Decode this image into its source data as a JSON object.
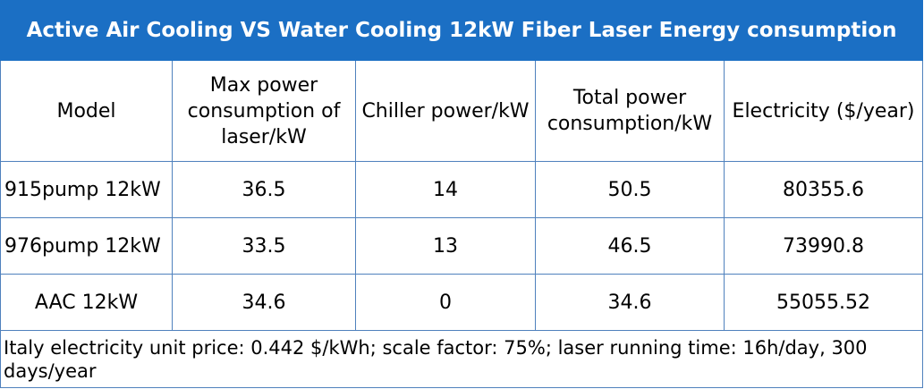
{
  "title": "Active Air Cooling VS Water Cooling 12kW Fiber Laser Energy consumption",
  "headers": {
    "model": "Model",
    "max_power": "Max power consumption of laser/kW",
    "chiller_power": "Chiller power/kW",
    "total_power": "Total power consumption/kW",
    "electricity": "Electricity ($/year)"
  },
  "rows": [
    {
      "model": "915pump 12kW",
      "max_power": "36.5",
      "chiller_power": "14",
      "total_power": "50.5",
      "electricity": "80355.6"
    },
    {
      "model": "976pump 12kW",
      "max_power": "33.5",
      "chiller_power": "13",
      "total_power": "46.5",
      "electricity": "73990.8"
    },
    {
      "model": "AAC 12kW",
      "max_power": "34.6",
      "chiller_power": "0",
      "total_power": "34.6",
      "electricity": "55055.52"
    }
  ],
  "note": "Italy electricity unit price: 0.442 $/kWh; scale factor: 75%; laser running time: 16h/day, 300 days/year",
  "colors": {
    "title_background": "#1b6fc4",
    "title_text": "#ffffff",
    "border": "#4f81bd"
  }
}
